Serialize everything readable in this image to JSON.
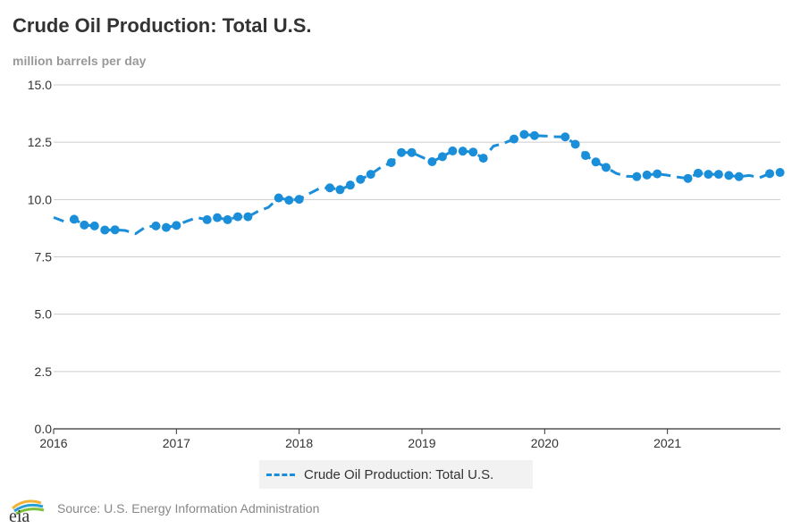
{
  "header": {
    "title": "Crude Oil Production: Total U.S.",
    "subtitle": "million barrels per day"
  },
  "legend": {
    "label": "Crude Oil Production: Total U.S."
  },
  "footer": {
    "logo_text": "eia",
    "source": "Source: U.S. Energy Information Administration"
  },
  "colors": {
    "series": "#1a8ed8",
    "grid": "#cccccc",
    "axis": "#333333"
  },
  "chart_data": {
    "type": "line",
    "title": "Crude Oil Production: Total U.S.",
    "ylabel": "million barrels per day",
    "xlabel": "",
    "ylim": [
      0,
      15
    ],
    "xlim": [
      2016.0,
      2021.92
    ],
    "y_ticks": [
      "0.0",
      "2.5",
      "5.0",
      "7.5",
      "10.0",
      "12.5",
      "15.0"
    ],
    "y_tick_values": [
      0,
      2.5,
      5,
      7.5,
      10,
      12.5,
      15
    ],
    "x_ticks": [
      "2016",
      "2017",
      "2018",
      "2019",
      "2020",
      "2021"
    ],
    "x_tick_values": [
      2016,
      2017,
      2018,
      2019,
      2020,
      2021
    ],
    "series": [
      {
        "name": "Crude Oil Production: Total U.S.",
        "x": [
          2016.0,
          2016.083,
          2016.167,
          2016.25,
          2016.333,
          2016.417,
          2016.5,
          2016.583,
          2016.667,
          2016.75,
          2016.833,
          2016.917,
          2017.0,
          2017.083,
          2017.167,
          2017.25,
          2017.333,
          2017.417,
          2017.5,
          2017.583,
          2017.667,
          2017.75,
          2017.833,
          2017.917,
          2018.0,
          2018.083,
          2018.167,
          2018.25,
          2018.333,
          2018.417,
          2018.5,
          2018.583,
          2018.667,
          2018.75,
          2018.833,
          2018.917,
          2019.0,
          2019.083,
          2019.167,
          2019.25,
          2019.333,
          2019.417,
          2019.5,
          2019.583,
          2019.667,
          2019.75,
          2019.833,
          2019.917,
          2020.0,
          2020.083,
          2020.167,
          2020.25,
          2020.333,
          2020.417,
          2020.5,
          2020.583,
          2020.667,
          2020.75,
          2020.833,
          2020.917,
          2021.0,
          2021.083,
          2021.167,
          2021.25,
          2021.333,
          2021.417,
          2021.5,
          2021.583,
          2021.667,
          2021.75,
          2021.833,
          2021.917
        ],
        "values": [
          9.22,
          9.05,
          9.14,
          8.89,
          8.85,
          8.67,
          8.68,
          8.65,
          8.51,
          8.81,
          8.85,
          8.78,
          8.87,
          9.05,
          9.21,
          9.12,
          9.21,
          9.12,
          9.25,
          9.25,
          9.49,
          9.66,
          10.07,
          9.97,
          10.01,
          10.26,
          10.49,
          10.51,
          10.43,
          10.63,
          10.88,
          11.1,
          11.41,
          11.61,
          12.05,
          12.05,
          11.85,
          11.65,
          11.87,
          12.12,
          12.11,
          12.07,
          11.8,
          12.33,
          12.45,
          12.64,
          12.84,
          12.79,
          12.77,
          12.74,
          12.73,
          12.41,
          11.92,
          11.64,
          11.4,
          11.14,
          11.02,
          11.0,
          11.07,
          11.12,
          11.06,
          10.98,
          10.92,
          11.15,
          11.1,
          11.1,
          11.05,
          11.0,
          11.05,
          10.95,
          11.13,
          11.18
        ],
        "markers": [
          0,
          0,
          1,
          1,
          1,
          1,
          1,
          0,
          0,
          0,
          1,
          1,
          1,
          0,
          0,
          1,
          1,
          1,
          1,
          1,
          0,
          0,
          1,
          1,
          1,
          0,
          0,
          1,
          1,
          1,
          1,
          1,
          0,
          1,
          1,
          1,
          0,
          1,
          1,
          1,
          1,
          1,
          1,
          0,
          0,
          1,
          1,
          1,
          0,
          0,
          1,
          1,
          1,
          1,
          1,
          0,
          0,
          1,
          1,
          1,
          0,
          0,
          1,
          1,
          1,
          1,
          1,
          1,
          0,
          0,
          1,
          1
        ]
      }
    ]
  }
}
